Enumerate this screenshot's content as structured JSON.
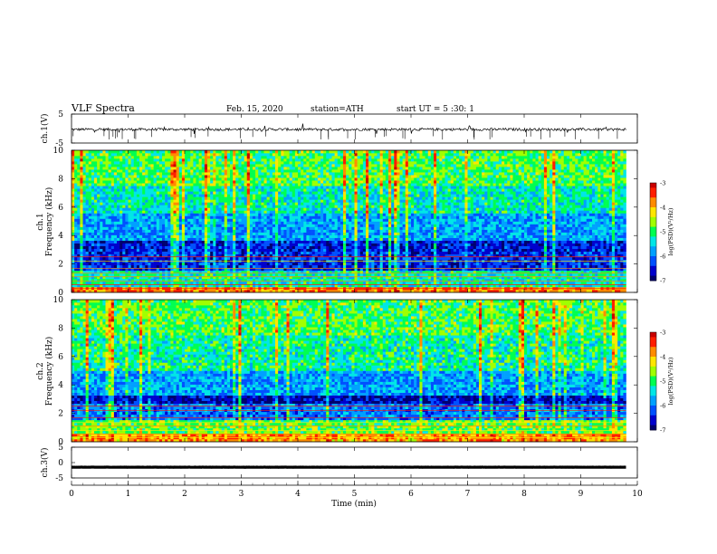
{
  "header": {
    "title": "VLF  Spectra",
    "date": "Feb. 15, 2020",
    "station": "station=ATH",
    "start": "start  UT  =    5  :30: 1"
  },
  "chart_data": [
    {
      "type": "line",
      "name": "ch1-waveform",
      "ylabel": "ch.1(V)",
      "ylim": [
        -5,
        5
      ],
      "yticks": [
        "5",
        "-5"
      ],
      "x_range_min": [
        0,
        9.8
      ],
      "approx_level_v": -0.3
    },
    {
      "type": "heatmap",
      "name": "ch1-spectrogram",
      "ylabel": "ch.1\nFrequency  (kHz)",
      "ylim": [
        0,
        10
      ],
      "yticks": [
        "0",
        "2",
        "4",
        "6",
        "8",
        "10"
      ],
      "colorbar": {
        "label": "log(PSD)(V²/Hz)",
        "range": [
          -7,
          -3
        ],
        "ticks": [
          "-3",
          "-4",
          "-5",
          "-6",
          "-7"
        ]
      },
      "bands_khz": [
        {
          "range": [
            0,
            0.4
          ],
          "level": -3.8
        },
        {
          "range": [
            0.4,
            1.5
          ],
          "level": -5.3
        },
        {
          "range": [
            1.5,
            2.8
          ],
          "level": -6.4
        },
        {
          "range": [
            2.8,
            3.6
          ],
          "level": -6.5
        },
        {
          "range": [
            3.6,
            5.5
          ],
          "level": -5.8
        },
        {
          "range": [
            5.5,
            7.5
          ],
          "level": -5.3
        },
        {
          "range": [
            7.5,
            10
          ],
          "level": -4.9
        }
      ]
    },
    {
      "type": "heatmap",
      "name": "ch2-spectrogram",
      "ylabel": "ch.2\nFrequency  (kHz)",
      "ylim": [
        0,
        10
      ],
      "yticks": [
        "0",
        "2",
        "4",
        "6",
        "8",
        "10"
      ],
      "colorbar": {
        "label": "log(PSD)(V²/Hz)",
        "range": [
          -7,
          -3
        ],
        "ticks": [
          "-3",
          "-4",
          "-5",
          "-6",
          "-7"
        ]
      },
      "bands_khz": [
        {
          "range": [
            0,
            0.5
          ],
          "level": -3.9
        },
        {
          "range": [
            0.5,
            1.5
          ],
          "level": -4.8
        },
        {
          "range": [
            1.5,
            2.6
          ],
          "level": -6.0
        },
        {
          "range": [
            2.6,
            3.2
          ],
          "level": -6.7
        },
        {
          "range": [
            3.2,
            5.0
          ],
          "level": -5.8
        },
        {
          "range": [
            5.0,
            7.5
          ],
          "level": -5.2
        },
        {
          "range": [
            7.5,
            10
          ],
          "level": -4.9
        }
      ]
    },
    {
      "type": "line",
      "name": "ch3-waveform",
      "ylabel": "ch.3(V)",
      "ylim": [
        -5,
        5
      ],
      "yticks": [
        "5",
        "0",
        "-5"
      ],
      "x_range_min": [
        0,
        9.8
      ],
      "approx_level_v": -1.5
    }
  ],
  "xaxis": {
    "label": "Time  (min)",
    "range": [
      0,
      10
    ],
    "ticks": [
      "0",
      "1",
      "2",
      "3",
      "4",
      "5",
      "6",
      "7",
      "8",
      "9",
      "10"
    ]
  },
  "colormap": [
    "#00006e",
    "#0000cd",
    "#0050ff",
    "#00a0ff",
    "#00e6e6",
    "#00ff50",
    "#a0ff00",
    "#ffe600",
    "#ff8c00",
    "#ff1e00",
    "#c80000"
  ]
}
